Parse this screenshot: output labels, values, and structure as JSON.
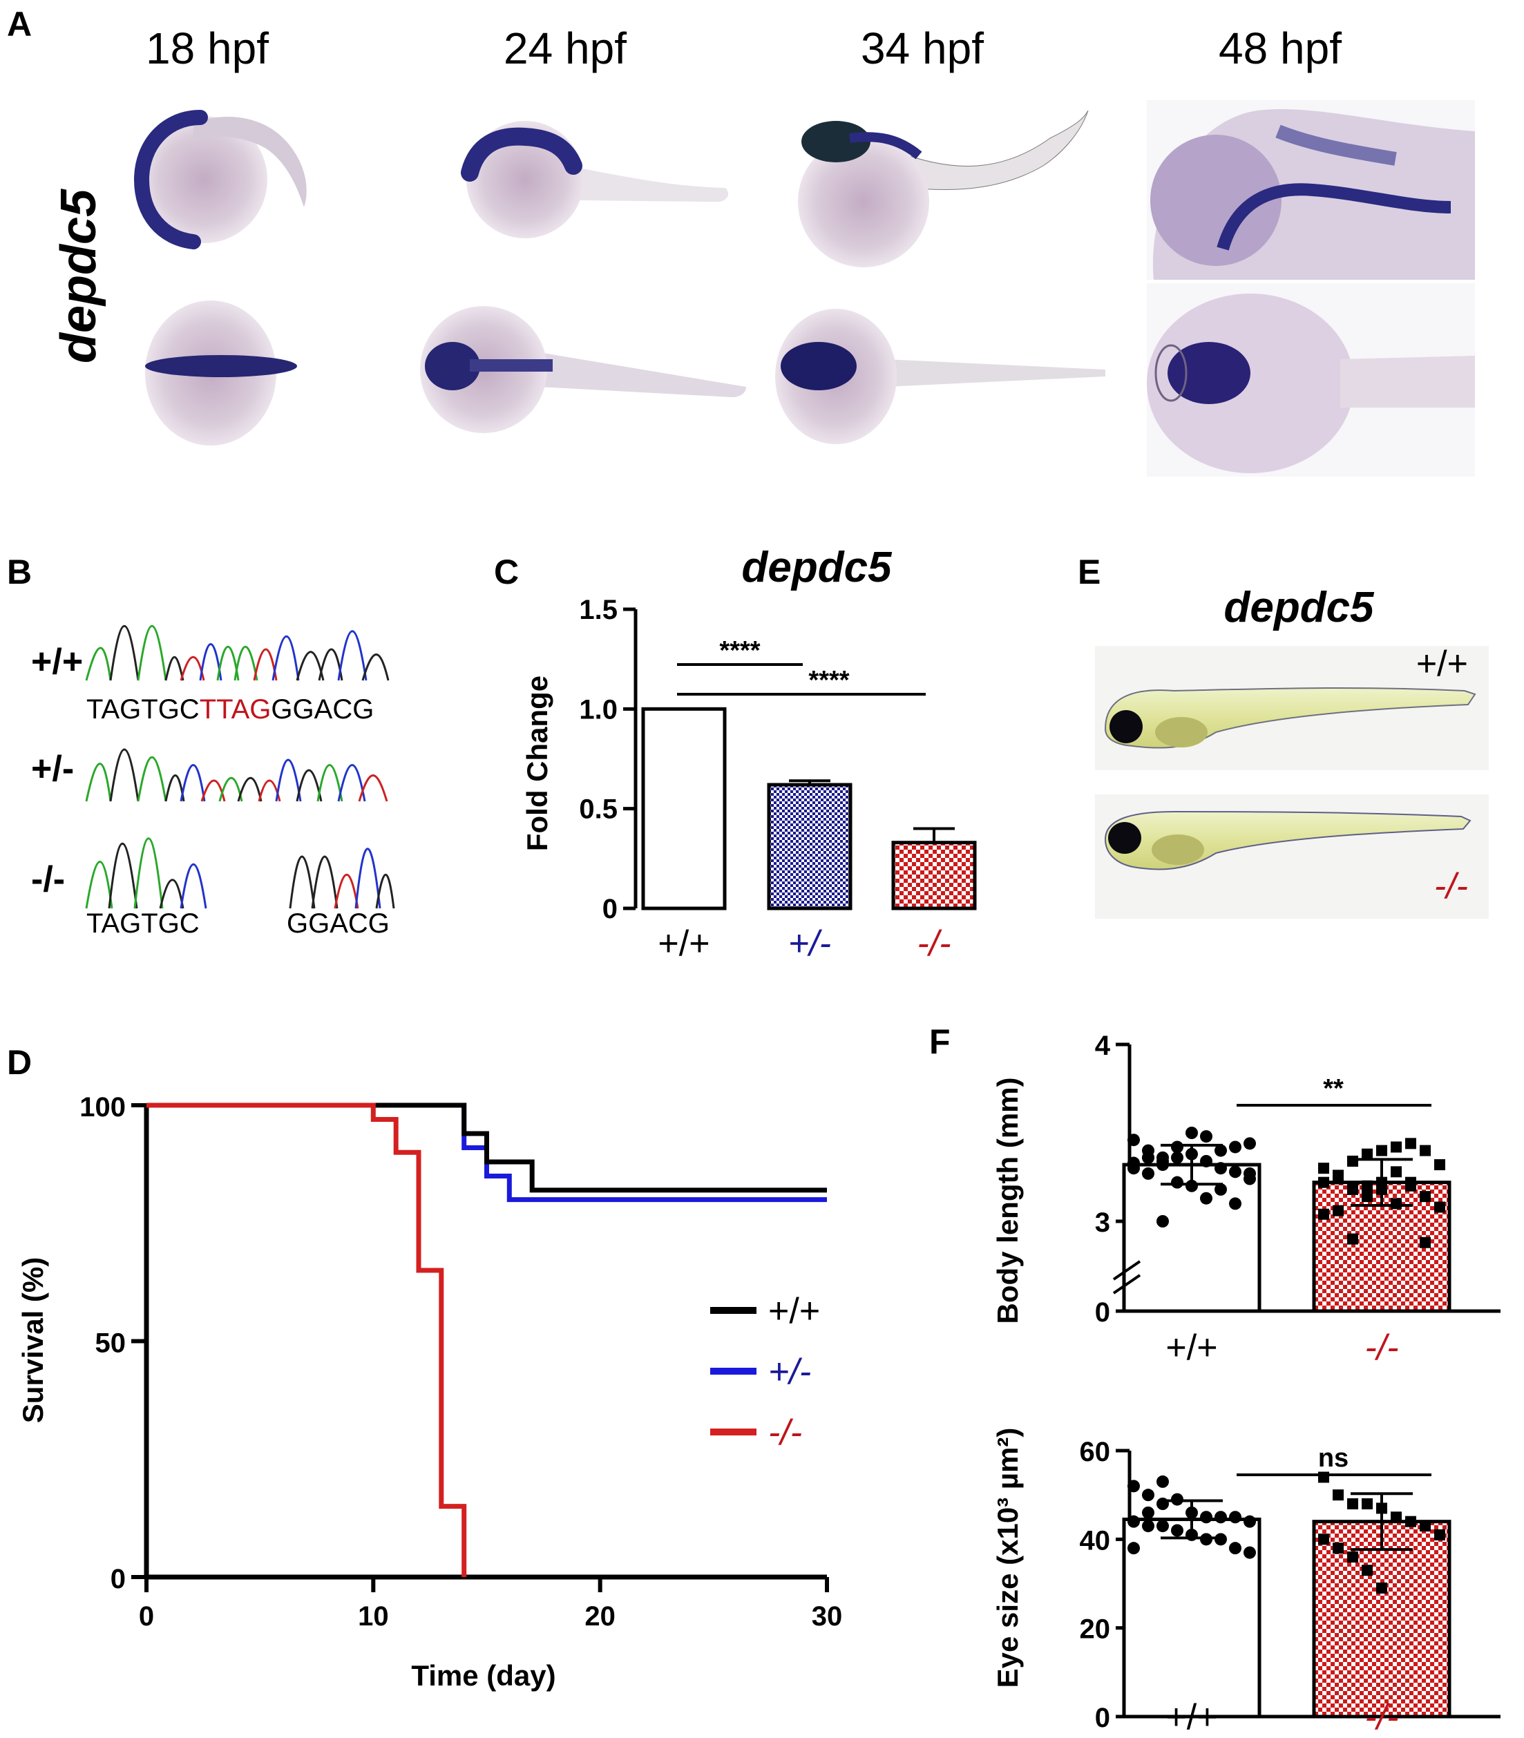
{
  "colors": {
    "wildtype": "#000000",
    "heterozygous": "#1a1adc",
    "homozygous": "#d42020",
    "stain": "#2a2a80",
    "hom_text": "#c0141c",
    "het_text": "#1a1a99"
  },
  "panel_a": {
    "letter": "A",
    "gene_label": "depdc5",
    "stages": [
      "18 hpf",
      "24 hpf",
      "34 hpf",
      "48 hpf"
    ]
  },
  "panel_b": {
    "letter": "B",
    "rows": [
      {
        "genotype": "+/+",
        "seq_before": "TAGTGC",
        "seq_insert": "TTAG",
        "seq_after": "GGACG"
      },
      {
        "genotype": "+/-",
        "seq_before": "",
        "seq_insert": "",
        "seq_after": ""
      },
      {
        "genotype": "-/-",
        "seq_before": "TAGTGC",
        "seq_insert": "",
        "seq_after": "GGACG"
      }
    ]
  },
  "panel_e": {
    "letter": "E",
    "gene_label": "depdc5",
    "labels": [
      "+/+",
      "-/-"
    ]
  },
  "chart_data": [
    {
      "panel": "C",
      "type": "bar",
      "title": "depdc5",
      "ylabel": "Fold Change",
      "xlabel": "",
      "categories": [
        "+/+",
        "+/-",
        "-/-"
      ],
      "values": [
        1.0,
        0.62,
        0.33
      ],
      "error": [
        0,
        0.02,
        0.07
      ],
      "ylim": [
        0,
        1.5
      ],
      "yticks": [
        "0",
        "0.5",
        "1.0",
        "1.5"
      ],
      "significance": [
        {
          "from": "+/+",
          "to": "+/-",
          "label": "****"
        },
        {
          "from": "+/+",
          "to": "-/-",
          "label": "****"
        }
      ]
    },
    {
      "panel": "D",
      "type": "line",
      "title": "",
      "xlabel": "Time (day)",
      "ylabel": "Survival (%)",
      "xlim": [
        0,
        30
      ],
      "ylim": [
        0,
        100
      ],
      "xticks": [
        "0",
        "10",
        "20",
        "30"
      ],
      "yticks": [
        "0",
        "50",
        "100"
      ],
      "legend_position": "right",
      "series": [
        {
          "name": "+/+",
          "steps": [
            [
              0,
              100
            ],
            [
              14,
              100
            ],
            [
              14,
              94
            ],
            [
              15,
              94
            ],
            [
              15,
              88
            ],
            [
              17,
              88
            ],
            [
              17,
              82
            ],
            [
              30,
              82
            ]
          ]
        },
        {
          "name": "+/-",
          "steps": [
            [
              0,
              100
            ],
            [
              14,
              100
            ],
            [
              14,
              91
            ],
            [
              15,
              91
            ],
            [
              15,
              85
            ],
            [
              16,
              85
            ],
            [
              16,
              80
            ],
            [
              30,
              80
            ]
          ]
        },
        {
          "name": "-/-",
          "steps": [
            [
              0,
              100
            ],
            [
              10,
              100
            ],
            [
              10,
              97
            ],
            [
              11,
              97
            ],
            [
              11,
              90
            ],
            [
              12,
              90
            ],
            [
              12,
              65
            ],
            [
              13,
              65
            ],
            [
              13,
              15
            ],
            [
              14,
              15
            ],
            [
              14,
              0
            ]
          ]
        }
      ]
    },
    {
      "panel": "F",
      "type": "bar",
      "title": "",
      "ylabel": "Body length (mm)",
      "xlabel": "",
      "categories": [
        "+/+",
        "-/-"
      ],
      "values": [
        3.32,
        3.22
      ],
      "error": [
        0.11,
        0.13
      ],
      "ylim": [
        3,
        4
      ],
      "yticks": [
        "0",
        "3",
        "4"
      ],
      "axis_break": true,
      "significance": [
        {
          "from": "+/+",
          "to": "-/-",
          "label": "**"
        }
      ],
      "points": [
        [
          3.33,
          3.36,
          3.32,
          3.36,
          3.38,
          3.34,
          3.4,
          3.42,
          3.44,
          3.46,
          3.4,
          3.36,
          3.42,
          3.5,
          3.48,
          3.3,
          3.28,
          3.27,
          3.3,
          3.27,
          3.34,
          3.22,
          3.2,
          3.13,
          3.18,
          3.1,
          3.24,
          3.32,
          3.36,
          3.0
        ],
        [
          3.22,
          3.26,
          3.34,
          3.38,
          3.4,
          3.42,
          3.44,
          3.4,
          3.32,
          3.3,
          3.24,
          3.18,
          3.2,
          3.18,
          3.1,
          3.22,
          3.14,
          3.08,
          3.04,
          3.06,
          2.9,
          3.14,
          3.22,
          3.28,
          3.2,
          2.88
        ]
      ]
    },
    {
      "panel": "F",
      "type": "bar",
      "title": "",
      "ylabel": "Eye size (x10³ µm²)",
      "xlabel": "",
      "categories": [
        "+/+",
        "-/-"
      ],
      "values": [
        44.5,
        44.0
      ],
      "error": [
        4.2,
        6.3
      ],
      "ylim": [
        0,
        60
      ],
      "yticks": [
        "0",
        "20",
        "40",
        "60"
      ],
      "significance": [
        {
          "from": "+/+",
          "to": "-/-",
          "label": "ns"
        }
      ],
      "points": [
        [
          52,
          50,
          48,
          49,
          46,
          45,
          45,
          45,
          44,
          44,
          43,
          43,
          42,
          41,
          40,
          40,
          38,
          37,
          38,
          46,
          53
        ],
        [
          54,
          50,
          48,
          48,
          47,
          45,
          44,
          43,
          41,
          40,
          38,
          36,
          33,
          29
        ]
      ]
    }
  ]
}
